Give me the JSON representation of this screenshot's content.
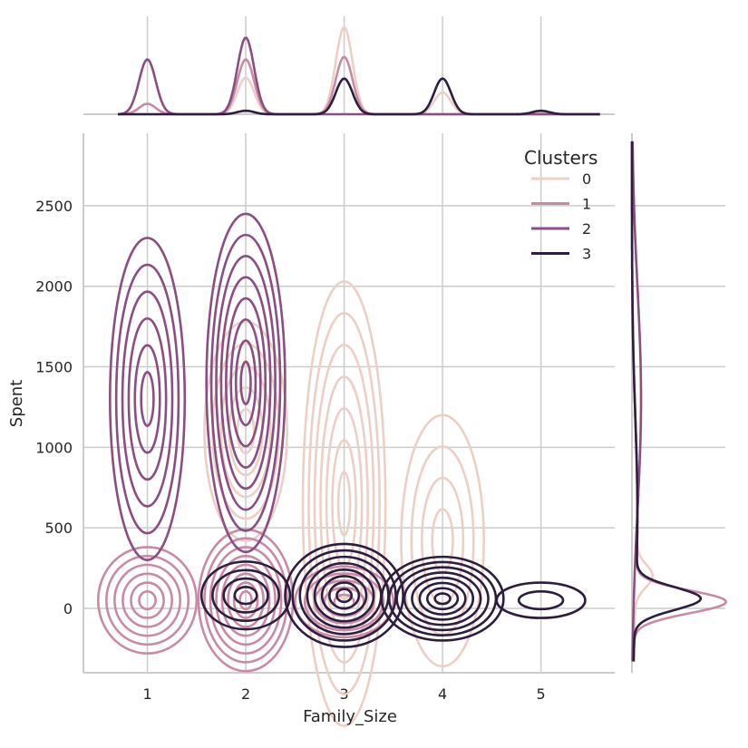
{
  "chart_data": {
    "type": "kde-joint",
    "xlabel": "Family_Size",
    "ylabel": "Spent",
    "xlim": [
      0.35,
      5.75
    ],
    "ylim": [
      -400,
      2950
    ],
    "xticks": [
      "1",
      "2",
      "3",
      "4",
      "5"
    ],
    "yticks": [
      "0",
      "500",
      "1000",
      "1500",
      "2000",
      "2500"
    ],
    "grid": true,
    "legend": {
      "title": "Clusters",
      "placement": "top-right",
      "entries": [
        "0",
        "1",
        "2",
        "3"
      ]
    },
    "series": [
      {
        "name": "0",
        "color": "#ecd0c8",
        "contours": [
          {
            "x": 2,
            "y": 1100,
            "rx": 0.42,
            "ry": 680,
            "levels": 5
          },
          {
            "x": 3,
            "y": 650,
            "rx": 0.42,
            "ry": 1380,
            "levels": 7
          },
          {
            "x": 4,
            "y": 420,
            "rx": 0.42,
            "ry": 780,
            "levels": 4
          }
        ],
        "x_marginal": [
          [
            1,
            0
          ],
          [
            2,
            0.42
          ],
          [
            3,
            1.0
          ],
          [
            4,
            0.25
          ],
          [
            5,
            0.02
          ]
        ],
        "y_marginal_peak": [
          200,
          0.18
        ]
      },
      {
        "name": "1",
        "color": "#c98aa6",
        "contours": [
          {
            "x": 1,
            "y": 50,
            "rx": 0.5,
            "ry": 330,
            "levels": 6
          },
          {
            "x": 2,
            "y": 50,
            "rx": 0.48,
            "ry": 440,
            "levels": 8
          },
          {
            "x": 3,
            "y": 40,
            "rx": 0.5,
            "ry": 220,
            "levels": 5
          }
        ],
        "x_marginal": [
          [
            1,
            0.12
          ],
          [
            2,
            0.63
          ],
          [
            3,
            0.66
          ],
          [
            4,
            0
          ],
          [
            5,
            0
          ]
        ],
        "y_marginal_peak": [
          40,
          1.0
        ]
      },
      {
        "name": "2",
        "color": "#8a4f80",
        "contours": [
          {
            "x": 1,
            "y": 1300,
            "rx": 0.38,
            "ry": 1000,
            "levels": 6
          },
          {
            "x": 2,
            "y": 1400,
            "rx": 0.4,
            "ry": 1050,
            "levels": 8
          }
        ],
        "x_marginal": [
          [
            1,
            0.63
          ],
          [
            2,
            0.88
          ],
          [
            3,
            0
          ],
          [
            4,
            0
          ],
          [
            5,
            0
          ]
        ],
        "y_marginal_peak": [
          1300,
          0.1
        ]
      },
      {
        "name": "3",
        "color": "#2d1e3e",
        "contours": [
          {
            "x": 2,
            "y": 80,
            "rx": 0.45,
            "ry": 210,
            "levels": 4
          },
          {
            "x": 3,
            "y": 80,
            "rx": 0.6,
            "ry": 320,
            "levels": 8
          },
          {
            "x": 4,
            "y": 60,
            "rx": 0.62,
            "ry": 260,
            "levels": 8
          },
          {
            "x": 5,
            "y": 50,
            "rx": 0.45,
            "ry": 110,
            "levels": 2
          }
        ],
        "x_marginal": [
          [
            1,
            0
          ],
          [
            2,
            0.04
          ],
          [
            3,
            0.41
          ],
          [
            4,
            0.41
          ],
          [
            5,
            0.04
          ]
        ],
        "y_marginal_peak": [
          60,
          0.72
        ]
      }
    ]
  }
}
